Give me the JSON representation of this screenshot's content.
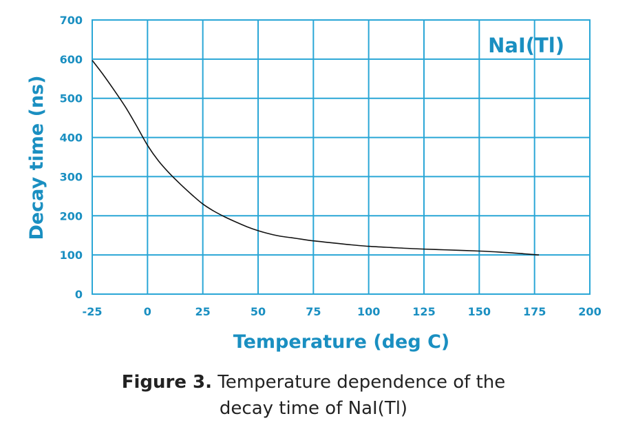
{
  "chart_data": {
    "type": "line",
    "xlabel": "Temperature (deg C)",
    "ylabel": "Decay time (ns)",
    "xlim": [
      -25,
      200
    ],
    "ylim": [
      0,
      700
    ],
    "x_ticks": [
      "-25",
      "0",
      "25",
      "50",
      "75",
      "100",
      "125",
      "150",
      "175",
      "200"
    ],
    "y_ticks": [
      "0",
      "100",
      "200",
      "300",
      "400",
      "500",
      "600",
      "700"
    ],
    "x_tick_values": [
      -25,
      0,
      25,
      50,
      75,
      100,
      125,
      150,
      175,
      200
    ],
    "y_tick_values": [
      0,
      100,
      200,
      300,
      400,
      500,
      600,
      700
    ],
    "grid": true,
    "annotation": "NaI(Tl)",
    "series": [
      {
        "x": [
          -25,
          -20,
          -15,
          -10,
          -5,
          0,
          5,
          10,
          15,
          20,
          25,
          30,
          35,
          40,
          45,
          50,
          55,
          60,
          65,
          70,
          75,
          80,
          90,
          100,
          110,
          120,
          130,
          140,
          150,
          160,
          170,
          177
        ],
        "y": [
          597,
          560,
          520,
          478,
          430,
          380,
          340,
          308,
          280,
          254,
          230,
          212,
          197,
          184,
          172,
          162,
          154,
          148,
          144,
          140,
          136,
          133,
          127,
          122,
          119,
          116,
          114,
          112,
          110,
          107,
          103,
          100
        ]
      }
    ],
    "colors": {
      "axis": "#1a8fc1",
      "grid": "#29a6d6",
      "line": "#111111"
    }
  },
  "caption": {
    "bold": "Figure 3.",
    "line1": " Temperature dependence of the",
    "line2": "decay time of NaI(Tl)"
  }
}
